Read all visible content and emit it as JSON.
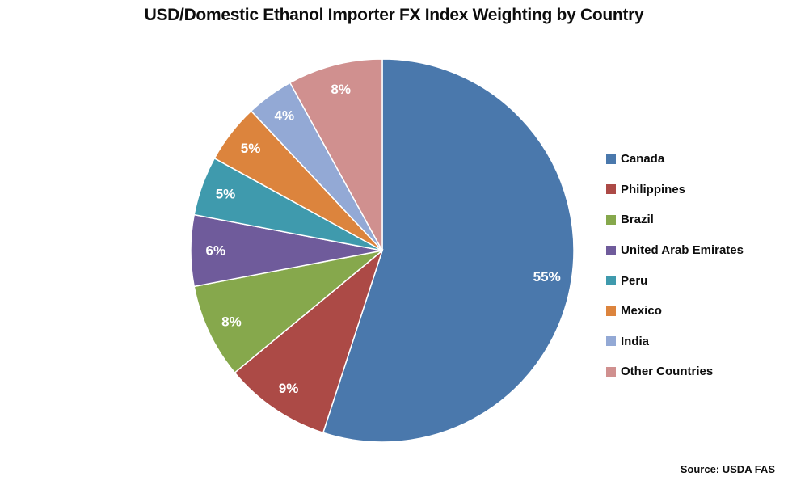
{
  "title": "USD/Domestic Ethanol Importer FX Index Weighting by Country",
  "source": "Source: USDA FAS",
  "chart_data": {
    "type": "pie",
    "title": "USD/Domestic Ethanol Importer FX Index Weighting by Country",
    "legend_position": "right",
    "start_angle": "top",
    "direction": "clockwise",
    "data_label_color": "#ffffff",
    "slices": [
      {
        "label": "Canada",
        "value": 55,
        "pct_label": "55%",
        "color": "#4a78ac"
      },
      {
        "label": "Philippines",
        "value": 9,
        "pct_label": "9%",
        "color": "#ac4a46"
      },
      {
        "label": "Brazil",
        "value": 8,
        "pct_label": "8%",
        "color": "#86a84c"
      },
      {
        "label": "United Arab Emirates",
        "value": 6,
        "pct_label": "6%",
        "color": "#6f5b9b"
      },
      {
        "label": "Peru",
        "value": 5,
        "pct_label": "5%",
        "color": "#3f9aad"
      },
      {
        "label": "Mexico",
        "value": 5,
        "pct_label": "5%",
        "color": "#dc843d"
      },
      {
        "label": "India",
        "value": 4,
        "pct_label": "4%",
        "color": "#93a9d5"
      },
      {
        "label": "Other Countries",
        "value": 8,
        "pct_label": "8%",
        "color": "#d0908f"
      }
    ]
  }
}
